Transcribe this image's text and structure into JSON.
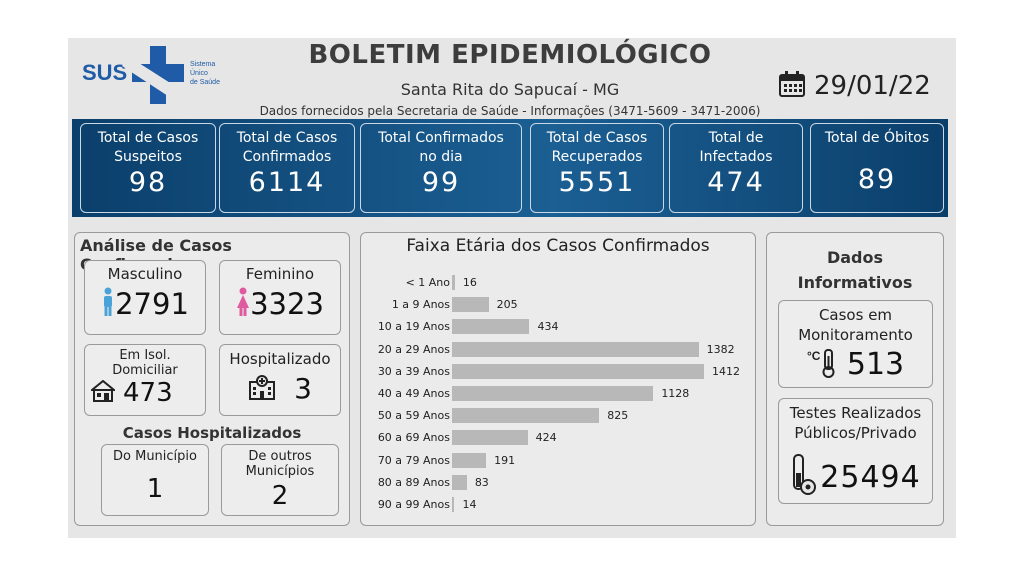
{
  "header": {
    "logo_text": "SUS",
    "logo_sub": [
      "Sistema",
      "Único",
      "de Saúde"
    ],
    "title": "BOLETIM EPIDEMIOLÓGICO",
    "city": "Santa Rita do Sapucaí - MG",
    "source": "Dados fornecidos pela Secretaria de Saúde - Informações (3471-5609 - 3471-2006)",
    "date": "29/01/22"
  },
  "kpis": [
    {
      "label1": "Total de Casos",
      "label2": "Suspeitos",
      "value": "98"
    },
    {
      "label1": "Total de Casos",
      "label2": "Confirmados",
      "value": "6114"
    },
    {
      "label1": "Total Confirmados",
      "label2": "no dia",
      "value": "99"
    },
    {
      "label1": "Total de Casos",
      "label2": "Recuperados",
      "value": "5551"
    },
    {
      "label1": "Total de",
      "label2": "Infectados",
      "value": "474"
    },
    {
      "label1": "Total de Óbitos",
      "label2": "",
      "value": "89"
    }
  ],
  "analysis": {
    "title": "Análise de Casos Confirmados",
    "male_label": "Masculino",
    "male_value": "2791",
    "female_label": "Feminino",
    "female_value": "3323",
    "home_label1": "Em Isol.",
    "home_label2": "Domiciliar",
    "home_value": "473",
    "hosp_label": "Hospitalizado",
    "hosp_value": "3",
    "hosp_section_title": "Casos Hospitalizados",
    "muni_label": "Do Município",
    "muni_value": "1",
    "other_label1": "De outros",
    "other_label2": "Municípios",
    "other_value": "2"
  },
  "chart_data": {
    "type": "bar",
    "title": "Faixa Etária dos Casos Confirmados",
    "categories": [
      "< 1 Ano",
      "1 a 9 Anos",
      "10 a 19 Anos",
      "20 a 29 Anos",
      "30 a 39 Anos",
      "40 a 49 Anos",
      "50 a 59 Anos",
      "60 a 69 Anos",
      "70 a 79 Anos",
      "80 a 89 Anos",
      "90 a 99 Anos"
    ],
    "values": [
      16,
      205,
      434,
      1382,
      1412,
      1128,
      825,
      424,
      191,
      83,
      14
    ],
    "orientation": "horizontal",
    "bar_color": "#b8b8b8"
  },
  "info": {
    "title1": "Dados",
    "title2": "Informativos",
    "monitor_label1": "Casos em",
    "monitor_label2": "Monitoramento",
    "monitor_value": "513",
    "tests_label1": "Testes Realizados",
    "tests_label2": "Públicos/Privado",
    "tests_value": "25494"
  },
  "colors": {
    "banner": "#0b3f6b",
    "accent": "#1b5f93",
    "male": "#4aa3d8",
    "female": "#e05aa0"
  },
  "icons": [
    "calendar-icon",
    "male-icon",
    "female-icon",
    "house-icon",
    "hospital-icon",
    "thermometer-icon",
    "test-tube-icon"
  ]
}
